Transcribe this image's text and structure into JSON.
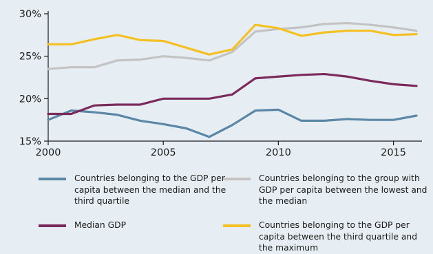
{
  "chart_data": {
    "type": "line",
    "title": "",
    "xlabel": "",
    "ylabel": "",
    "x": [
      2000,
      2001,
      2002,
      2003,
      2004,
      2005,
      2006,
      2007,
      2008,
      2009,
      2010,
      2011,
      2012,
      2013,
      2014,
      2015,
      2016
    ],
    "xlim": [
      2000,
      2016
    ],
    "ylim": [
      15,
      30
    ],
    "x_ticks": [
      2000,
      2005,
      2010,
      2015
    ],
    "y_ticks": [
      15,
      20,
      25,
      30
    ],
    "y_tick_labels": [
      "15%",
      "20%",
      "25%",
      "30%"
    ],
    "grid": false,
    "legend_position": "bottom",
    "series": [
      {
        "name": "Countries belonging to the GDP per capita between the median and the third quartile",
        "color": "#5a87a6",
        "values": [
          17.5,
          18.6,
          18.4,
          18.1,
          17.4,
          17.0,
          16.5,
          15.5,
          16.9,
          18.6,
          18.7,
          17.4,
          17.4,
          17.6,
          17.5,
          17.5,
          18.0
        ]
      },
      {
        "name": "Countries belonging to the group with GDP per capita between the lowest and the median",
        "color": "#c3c3c3",
        "values": [
          23.5,
          23.7,
          23.7,
          24.5,
          24.6,
          25.0,
          24.8,
          24.5,
          25.5,
          27.9,
          28.2,
          28.4,
          28.8,
          28.9,
          28.7,
          28.4,
          28.0
        ]
      },
      {
        "name": "Median GDP",
        "color": "#7b2a5c",
        "values": [
          18.2,
          18.2,
          19.2,
          19.3,
          19.3,
          20.0,
          20.0,
          20.0,
          20.5,
          22.4,
          22.6,
          22.8,
          22.9,
          22.6,
          22.1,
          21.7,
          21.5
        ]
      },
      {
        "name": "Countries belonging to the GDP per capita between the third quartile and the maximum",
        "color": "#f5c023",
        "values": [
          26.4,
          26.4,
          27.0,
          27.5,
          26.9,
          26.8,
          26.0,
          25.2,
          25.8,
          28.7,
          28.3,
          27.4,
          27.8,
          28.0,
          28.0,
          27.5,
          27.6
        ]
      }
    ]
  },
  "legend": [
    {
      "lines": [
        "Countries belonging to the GDP per",
        "capita between the median and the",
        "third quartile"
      ],
      "color": "#5a87a6"
    },
    {
      "lines": [
        "Countries belonging to the group with",
        "GDP per capita between the lowest and",
        "the median"
      ],
      "color": "#c3c3c3"
    },
    {
      "lines": [
        "Median GDP"
      ],
      "color": "#7b2a5c"
    },
    {
      "lines": [
        "Countries belonging to the GDP per",
        "capita between the third quartile and",
        "the maximum"
      ],
      "color": "#f5c023"
    }
  ]
}
